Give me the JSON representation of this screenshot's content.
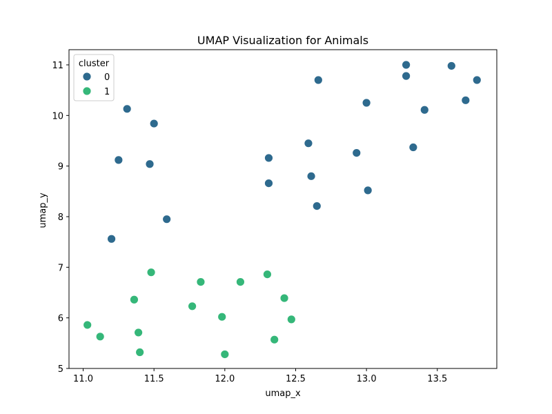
{
  "chart_data": {
    "type": "scatter",
    "title": "UMAP Visualization for Animals",
    "xlabel": "umap_x",
    "ylabel": "umap_y",
    "xlim": [
      10.9,
      13.92
    ],
    "ylim": [
      5.0,
      11.3
    ],
    "xticks": [
      11.0,
      11.5,
      12.0,
      12.5,
      13.0,
      13.5
    ],
    "xtick_labels": [
      "11.0",
      "11.5",
      "12.0",
      "12.5",
      "13.0",
      "13.5"
    ],
    "yticks": [
      5,
      6,
      7,
      8,
      9,
      10,
      11
    ],
    "ytick_labels": [
      "5",
      "6",
      "7",
      "8",
      "9",
      "10",
      "11"
    ],
    "grid": false,
    "legend": {
      "title": "cluster",
      "placement": "top-left",
      "entries": [
        "0",
        "1"
      ]
    },
    "series": [
      {
        "name": "0",
        "color": "#2e6a8e",
        "points": [
          [
            13.28,
            11.0
          ],
          [
            13.28,
            10.78
          ],
          [
            13.6,
            10.98
          ],
          [
            13.78,
            10.7
          ],
          [
            12.66,
            10.7
          ],
          [
            13.0,
            10.25
          ],
          [
            13.7,
            10.3
          ],
          [
            13.41,
            10.11
          ],
          [
            11.31,
            10.13
          ],
          [
            11.5,
            9.84
          ],
          [
            12.59,
            9.45
          ],
          [
            12.93,
            9.26
          ],
          [
            13.33,
            9.37
          ],
          [
            11.25,
            9.12
          ],
          [
            11.47,
            9.04
          ],
          [
            12.31,
            9.16
          ],
          [
            12.61,
            8.8
          ],
          [
            12.31,
            8.66
          ],
          [
            13.01,
            8.52
          ],
          [
            12.65,
            8.21
          ],
          [
            11.59,
            7.95
          ],
          [
            11.2,
            7.56
          ]
        ]
      },
      {
        "name": "1",
        "color": "#35b779",
        "points": [
          [
            11.48,
            6.9
          ],
          [
            11.83,
            6.71
          ],
          [
            12.11,
            6.71
          ],
          [
            12.3,
            6.86
          ],
          [
            11.36,
            6.36
          ],
          [
            11.77,
            6.23
          ],
          [
            12.42,
            6.39
          ],
          [
            11.98,
            6.02
          ],
          [
            12.47,
            5.97
          ],
          [
            11.03,
            5.86
          ],
          [
            11.39,
            5.71
          ],
          [
            11.12,
            5.63
          ],
          [
            12.35,
            5.57
          ],
          [
            11.4,
            5.32
          ],
          [
            12.0,
            5.28
          ]
        ]
      }
    ]
  }
}
